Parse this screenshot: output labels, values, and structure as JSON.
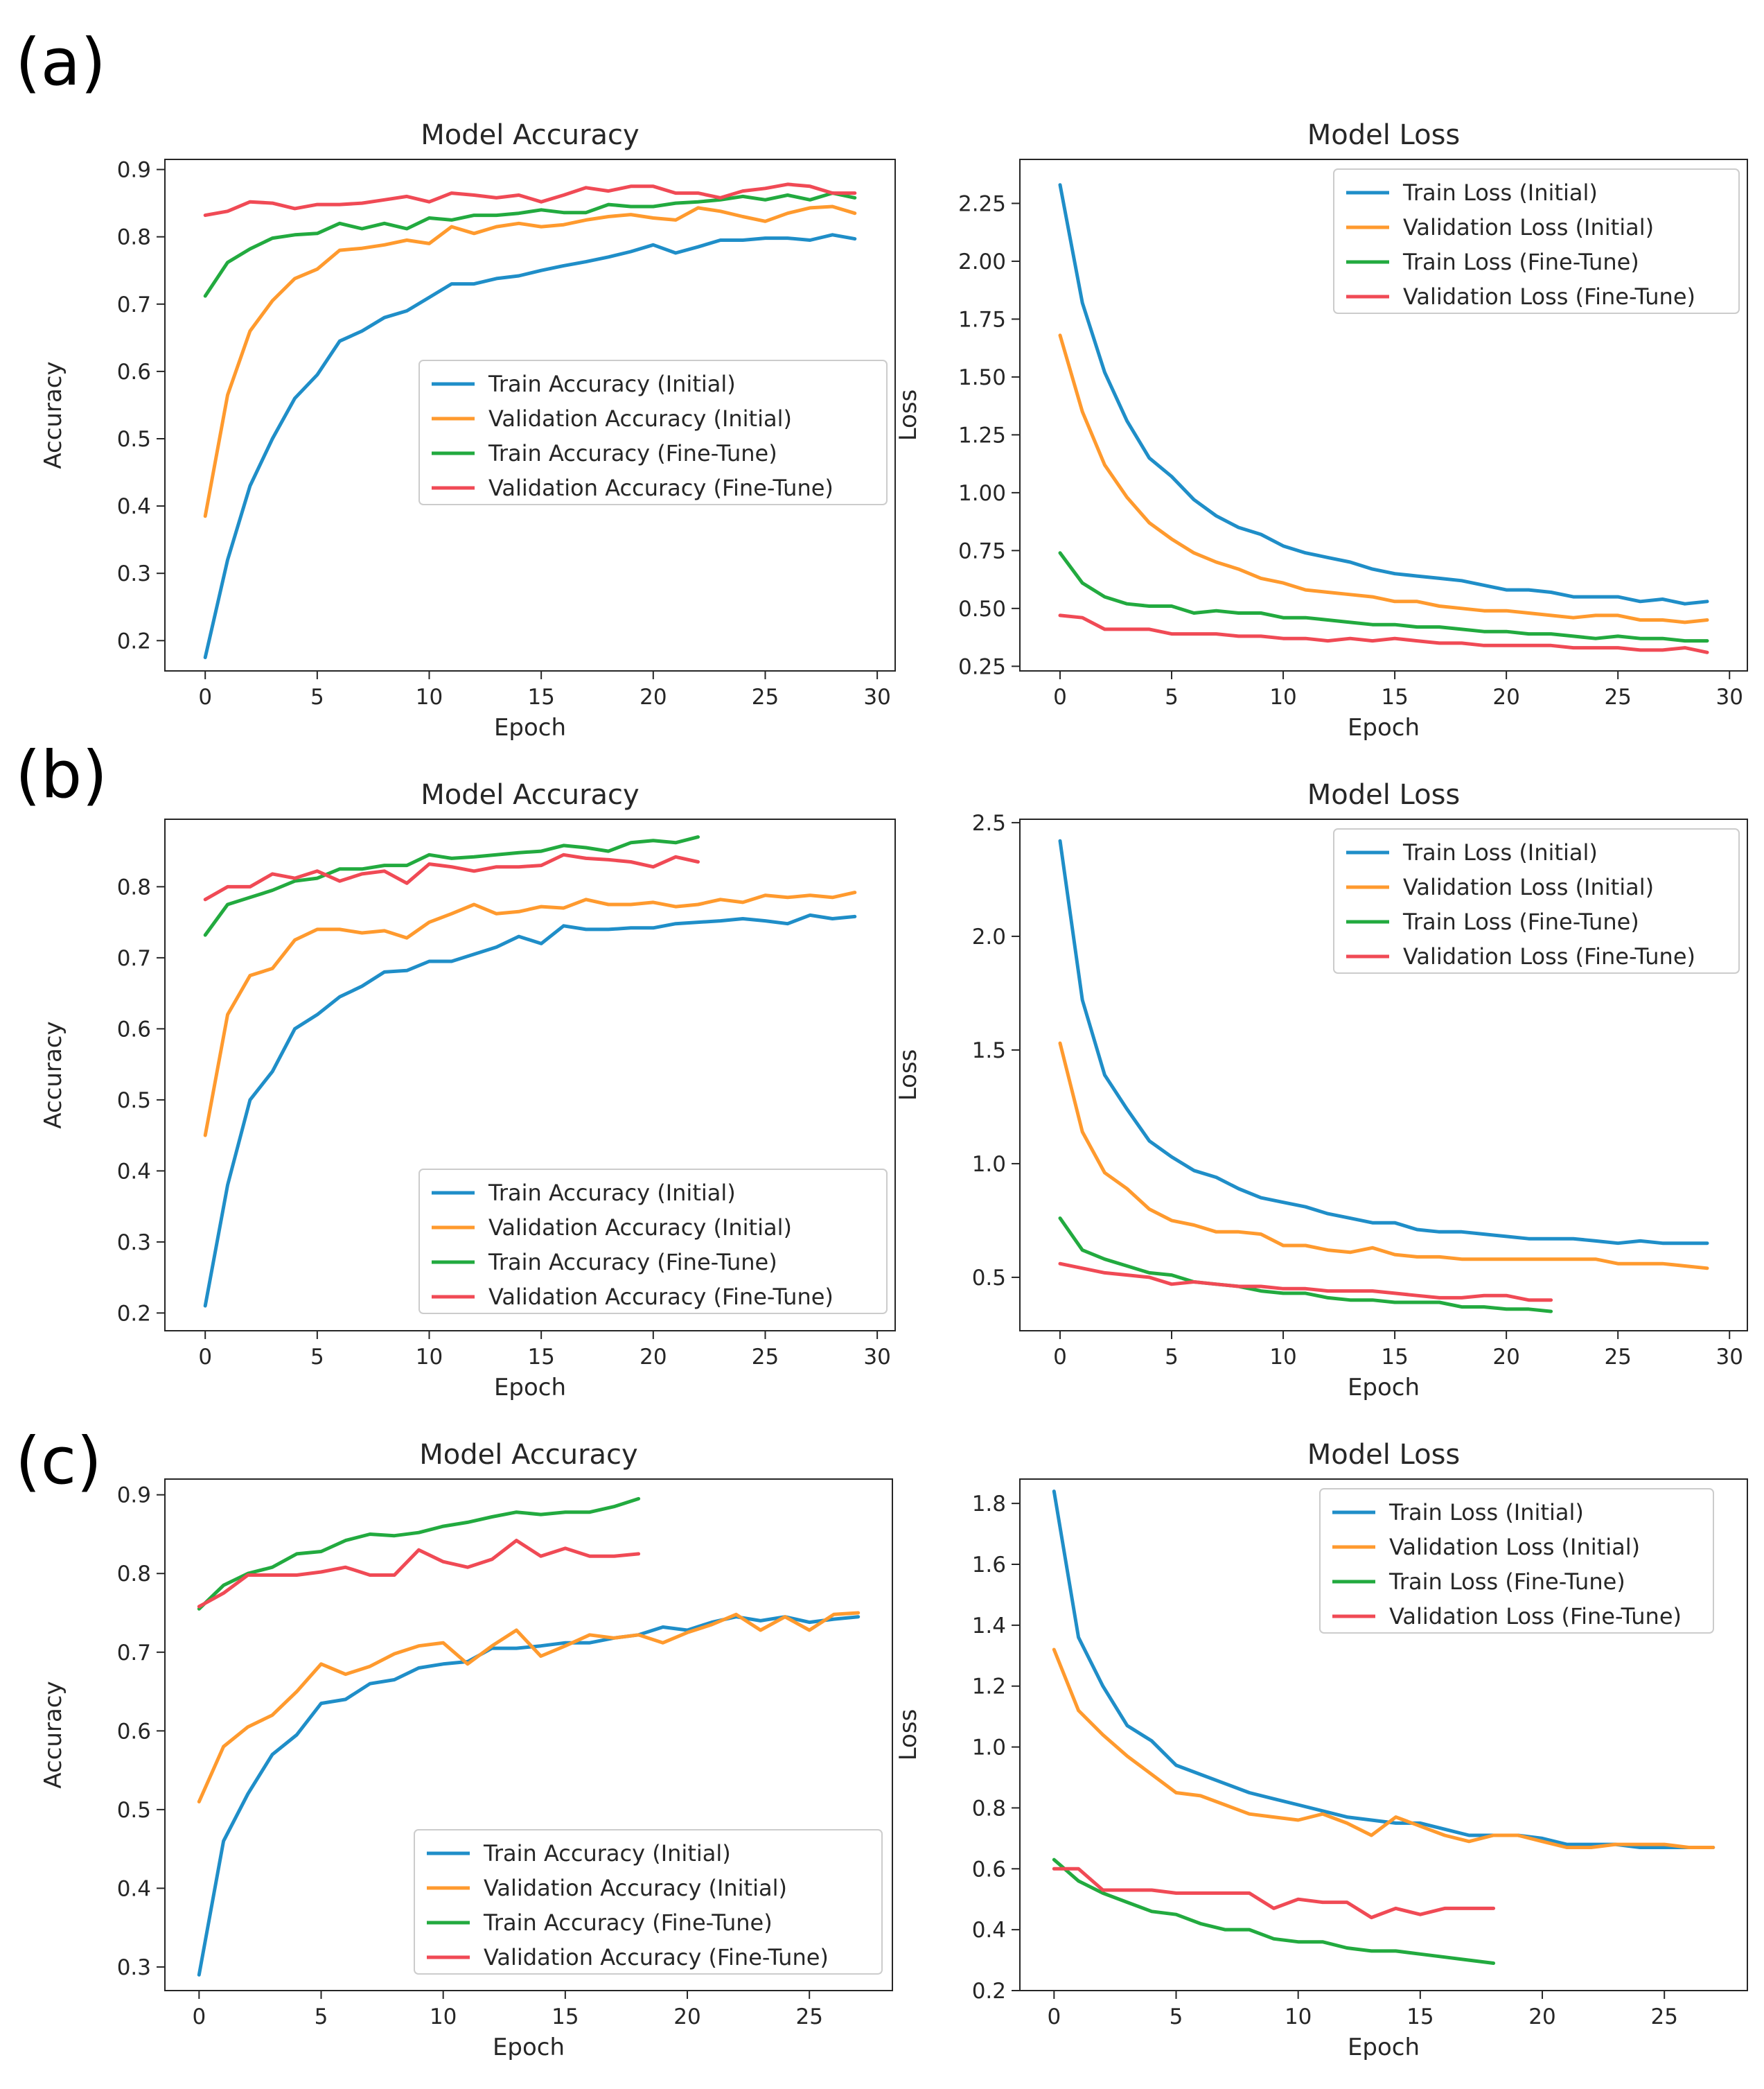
{
  "colors": {
    "train_initial": "#1f8ec8",
    "val_initial": "#ff9a2e",
    "train_finetune": "#22aa3f",
    "val_finetune": "#f04a55"
  },
  "panels": [
    {
      "label": "(a)"
    },
    {
      "label": "(b)"
    },
    {
      "label": "(c)"
    }
  ],
  "chart_data": [
    {
      "type": "line",
      "title": "Model Accuracy",
      "xlabel": "Epoch",
      "ylabel": "Accuracy",
      "xlim": [
        -1.8,
        30.8
      ],
      "ylim": [
        0.155,
        0.915
      ],
      "xticks": [
        0,
        5,
        10,
        15,
        20,
        25,
        30
      ],
      "yticks": [
        0.2,
        0.3,
        0.4,
        0.5,
        0.6,
        0.7,
        0.8,
        0.9
      ],
      "ytick_labels": [
        "0.2",
        "0.3",
        "0.4",
        "0.5",
        "0.6",
        "0.7",
        "0.8",
        "0.9"
      ],
      "legend": "lower-right",
      "series": [
        {
          "name": "Train Accuracy (Initial)",
          "color_key": "train_initial",
          "y": [
            0.175,
            0.32,
            0.43,
            0.5,
            0.56,
            0.595,
            0.645,
            0.66,
            0.68,
            0.69,
            0.71,
            0.73,
            0.73,
            0.738,
            0.742,
            0.75,
            0.757,
            0.763,
            0.77,
            0.778,
            0.788,
            0.776,
            0.785,
            0.795,
            0.795,
            0.798,
            0.798,
            0.795,
            0.803,
            0.797
          ]
        },
        {
          "name": "Validation Accuracy (Initial)",
          "color_key": "val_initial",
          "y": [
            0.385,
            0.565,
            0.66,
            0.705,
            0.738,
            0.752,
            0.78,
            0.783,
            0.788,
            0.795,
            0.79,
            0.815,
            0.805,
            0.815,
            0.82,
            0.815,
            0.818,
            0.825,
            0.83,
            0.833,
            0.828,
            0.825,
            0.843,
            0.838,
            0.83,
            0.823,
            0.835,
            0.843,
            0.845,
            0.835
          ]
        },
        {
          "name": "Train Accuracy (Fine-Tune)",
          "color_key": "train_finetune",
          "y": [
            0.712,
            0.762,
            0.782,
            0.798,
            0.803,
            0.805,
            0.82,
            0.812,
            0.82,
            0.812,
            0.828,
            0.825,
            0.832,
            0.832,
            0.835,
            0.84,
            0.836,
            0.836,
            0.848,
            0.845,
            0.845,
            0.85,
            0.852,
            0.855,
            0.86,
            0.855,
            0.862,
            0.855,
            0.865,
            0.858
          ]
        },
        {
          "name": "Validation Accuracy (Fine-Tune)",
          "color_key": "val_finetune",
          "y": [
            0.832,
            0.838,
            0.852,
            0.85,
            0.842,
            0.848,
            0.848,
            0.85,
            0.855,
            0.86,
            0.852,
            0.865,
            0.862,
            0.858,
            0.862,
            0.852,
            0.862,
            0.873,
            0.868,
            0.875,
            0.875,
            0.865,
            0.865,
            0.858,
            0.868,
            0.872,
            0.878,
            0.875,
            0.865,
            0.865
          ]
        }
      ]
    },
    {
      "type": "line",
      "title": "Model Loss",
      "xlabel": "Epoch",
      "ylabel": "Loss",
      "xlim": [
        -1.8,
        30.8
      ],
      "ylim": [
        0.23,
        2.44
      ],
      "xticks": [
        0,
        5,
        10,
        15,
        20,
        25,
        30
      ],
      "yticks": [
        0.25,
        0.5,
        0.75,
        1.0,
        1.25,
        1.5,
        1.75,
        2.0,
        2.25
      ],
      "ytick_labels": [
        "0.25",
        "0.50",
        "0.75",
        "1.00",
        "1.25",
        "1.50",
        "1.75",
        "2.00",
        "2.25"
      ],
      "legend": "upper-right",
      "series": [
        {
          "name": "Train Loss (Initial)",
          "color_key": "train_initial",
          "y": [
            2.33,
            1.82,
            1.52,
            1.31,
            1.15,
            1.07,
            0.97,
            0.9,
            0.85,
            0.82,
            0.77,
            0.74,
            0.72,
            0.7,
            0.67,
            0.65,
            0.64,
            0.63,
            0.62,
            0.6,
            0.58,
            0.58,
            0.57,
            0.55,
            0.55,
            0.55,
            0.53,
            0.54,
            0.52,
            0.53
          ]
        },
        {
          "name": "Validation Loss (Initial)",
          "color_key": "val_initial",
          "y": [
            1.68,
            1.35,
            1.12,
            0.98,
            0.87,
            0.8,
            0.74,
            0.7,
            0.67,
            0.63,
            0.61,
            0.58,
            0.57,
            0.56,
            0.55,
            0.53,
            0.53,
            0.51,
            0.5,
            0.49,
            0.49,
            0.48,
            0.47,
            0.46,
            0.47,
            0.47,
            0.45,
            0.45,
            0.44,
            0.45
          ]
        },
        {
          "name": "Train Loss (Fine-Tune)",
          "color_key": "train_finetune",
          "y": [
            0.74,
            0.61,
            0.55,
            0.52,
            0.51,
            0.51,
            0.48,
            0.49,
            0.48,
            0.48,
            0.46,
            0.46,
            0.45,
            0.44,
            0.43,
            0.43,
            0.42,
            0.42,
            0.41,
            0.4,
            0.4,
            0.39,
            0.39,
            0.38,
            0.37,
            0.38,
            0.37,
            0.37,
            0.36,
            0.36
          ]
        },
        {
          "name": "Validation Loss (Fine-Tune)",
          "color_key": "val_finetune",
          "y": [
            0.47,
            0.46,
            0.41,
            0.41,
            0.41,
            0.39,
            0.39,
            0.39,
            0.38,
            0.38,
            0.37,
            0.37,
            0.36,
            0.37,
            0.36,
            0.37,
            0.36,
            0.35,
            0.35,
            0.34,
            0.34,
            0.34,
            0.34,
            0.33,
            0.33,
            0.33,
            0.32,
            0.32,
            0.33,
            0.31
          ]
        }
      ]
    },
    {
      "type": "line",
      "title": "Model Accuracy",
      "xlabel": "Epoch",
      "ylabel": "Accuracy",
      "xlim": [
        -1.8,
        30.8
      ],
      "ylim": [
        0.175,
        0.895
      ],
      "xticks": [
        0,
        5,
        10,
        15,
        20,
        25,
        30
      ],
      "yticks": [
        0.2,
        0.3,
        0.4,
        0.5,
        0.6,
        0.7,
        0.8
      ],
      "ytick_labels": [
        "0.2",
        "0.3",
        "0.4",
        "0.5",
        "0.6",
        "0.7",
        "0.8"
      ],
      "legend": "lower-right",
      "series": [
        {
          "name": "Train Accuracy (Initial)",
          "color_key": "train_initial",
          "y": [
            0.21,
            0.38,
            0.5,
            0.54,
            0.6,
            0.62,
            0.645,
            0.66,
            0.68,
            0.682,
            0.695,
            0.695,
            0.705,
            0.715,
            0.73,
            0.72,
            0.745,
            0.74,
            0.74,
            0.742,
            0.742,
            0.748,
            0.75,
            0.752,
            0.755,
            0.752,
            0.748,
            0.76,
            0.755,
            0.758
          ]
        },
        {
          "name": "Validation Accuracy (Initial)",
          "color_key": "val_initial",
          "y": [
            0.45,
            0.62,
            0.675,
            0.685,
            0.725,
            0.74,
            0.74,
            0.735,
            0.738,
            0.728,
            0.75,
            0.762,
            0.775,
            0.762,
            0.765,
            0.772,
            0.77,
            0.782,
            0.775,
            0.775,
            0.778,
            0.772,
            0.775,
            0.782,
            0.778,
            0.788,
            0.785,
            0.788,
            0.785,
            0.792
          ]
        },
        {
          "name": "Train Accuracy (Fine-Tune)",
          "color_key": "train_finetune",
          "y": [
            0.732,
            0.775,
            0.785,
            0.795,
            0.808,
            0.812,
            0.825,
            0.825,
            0.83,
            0.83,
            0.845,
            0.84,
            0.842,
            0.845,
            0.848,
            0.85,
            0.858,
            0.855,
            0.85,
            0.862,
            0.865,
            0.862,
            0.87
          ]
        },
        {
          "name": "Validation Accuracy (Fine-Tune)",
          "color_key": "val_finetune",
          "y": [
            0.782,
            0.8,
            0.8,
            0.818,
            0.812,
            0.822,
            0.808,
            0.818,
            0.822,
            0.805,
            0.832,
            0.828,
            0.822,
            0.828,
            0.828,
            0.83,
            0.845,
            0.84,
            0.838,
            0.835,
            0.828,
            0.842,
            0.835
          ]
        }
      ]
    },
    {
      "type": "line",
      "title": "Model Loss",
      "xlabel": "Epoch",
      "ylabel": "Loss",
      "xlim": [
        -1.8,
        30.8
      ],
      "ylim": [
        0.265,
        2.515
      ],
      "xticks": [
        0,
        5,
        10,
        15,
        20,
        25,
        30
      ],
      "yticks": [
        0.5,
        1.0,
        1.5,
        2.0,
        2.5
      ],
      "ytick_labels": [
        "0.5",
        "1.0",
        "1.5",
        "2.0",
        "2.5"
      ],
      "legend": "upper-right",
      "series": [
        {
          "name": "Train Loss (Initial)",
          "color_key": "train_initial",
          "y": [
            2.42,
            1.72,
            1.39,
            1.24,
            1.1,
            1.03,
            0.97,
            0.94,
            0.89,
            0.85,
            0.83,
            0.81,
            0.78,
            0.76,
            0.74,
            0.74,
            0.71,
            0.7,
            0.7,
            0.69,
            0.68,
            0.67,
            0.67,
            0.67,
            0.66,
            0.65,
            0.66,
            0.65,
            0.65,
            0.65
          ]
        },
        {
          "name": "Validation Loss (Initial)",
          "color_key": "val_initial",
          "y": [
            1.53,
            1.14,
            0.96,
            0.89,
            0.8,
            0.75,
            0.73,
            0.7,
            0.7,
            0.69,
            0.64,
            0.64,
            0.62,
            0.61,
            0.63,
            0.6,
            0.59,
            0.59,
            0.58,
            0.58,
            0.58,
            0.58,
            0.58,
            0.58,
            0.58,
            0.56,
            0.56,
            0.56,
            0.55,
            0.54
          ]
        },
        {
          "name": "Train Loss (Fine-Tune)",
          "color_key": "train_finetune",
          "y": [
            0.76,
            0.62,
            0.58,
            0.55,
            0.52,
            0.51,
            0.48,
            0.47,
            0.46,
            0.44,
            0.43,
            0.43,
            0.41,
            0.4,
            0.4,
            0.39,
            0.39,
            0.39,
            0.37,
            0.37,
            0.36,
            0.36,
            0.35
          ]
        },
        {
          "name": "Validation Loss (Fine-Tune)",
          "color_key": "val_finetune",
          "y": [
            0.56,
            0.54,
            0.52,
            0.51,
            0.5,
            0.47,
            0.48,
            0.47,
            0.46,
            0.46,
            0.45,
            0.45,
            0.44,
            0.44,
            0.44,
            0.43,
            0.42,
            0.41,
            0.41,
            0.42,
            0.42,
            0.4,
            0.4
          ]
        }
      ]
    },
    {
      "type": "line",
      "title": "Model Accuracy",
      "xlabel": "Epoch",
      "ylabel": "Accuracy",
      "xlim": [
        -1.4,
        28.4
      ],
      "ylim": [
        0.27,
        0.92
      ],
      "xticks": [
        0,
        5,
        10,
        15,
        20,
        25
      ],
      "yticks": [
        0.3,
        0.4,
        0.5,
        0.6,
        0.7,
        0.8,
        0.9
      ],
      "ytick_labels": [
        "0.3",
        "0.4",
        "0.5",
        "0.6",
        "0.7",
        "0.8",
        "0.9"
      ],
      "legend": "lower-right",
      "series": [
        {
          "name": "Train Accuracy (Initial)",
          "color_key": "train_initial",
          "y": [
            0.29,
            0.46,
            0.52,
            0.57,
            0.595,
            0.635,
            0.64,
            0.66,
            0.665,
            0.68,
            0.685,
            0.688,
            0.705,
            0.705,
            0.708,
            0.712,
            0.712,
            0.718,
            0.722,
            0.732,
            0.728,
            0.738,
            0.745,
            0.74,
            0.745,
            0.738,
            0.742,
            0.745
          ]
        },
        {
          "name": "Validation Accuracy (Initial)",
          "color_key": "val_initial",
          "y": [
            0.51,
            0.58,
            0.605,
            0.62,
            0.65,
            0.685,
            0.672,
            0.682,
            0.698,
            0.708,
            0.712,
            0.685,
            0.708,
            0.728,
            0.695,
            0.708,
            0.722,
            0.718,
            0.722,
            0.712,
            0.725,
            0.735,
            0.748,
            0.728,
            0.745,
            0.728,
            0.748,
            0.75
          ]
        },
        {
          "name": "Train Accuracy (Fine-Tune)",
          "color_key": "train_finetune",
          "y": [
            0.755,
            0.785,
            0.8,
            0.808,
            0.825,
            0.828,
            0.842,
            0.85,
            0.848,
            0.852,
            0.86,
            0.865,
            0.872,
            0.878,
            0.875,
            0.878,
            0.878,
            0.885,
            0.895
          ]
        },
        {
          "name": "Validation Accuracy (Fine-Tune)",
          "color_key": "val_finetune",
          "y": [
            0.758,
            0.775,
            0.798,
            0.798,
            0.798,
            0.802,
            0.808,
            0.798,
            0.798,
            0.83,
            0.815,
            0.808,
            0.818,
            0.842,
            0.822,
            0.832,
            0.822,
            0.822,
            0.825
          ]
        }
      ]
    },
    {
      "type": "line",
      "title": "Model Loss",
      "xlabel": "Epoch",
      "ylabel": "Loss",
      "xlim": [
        -1.4,
        28.4
      ],
      "ylim": [
        0.2,
        1.88
      ],
      "xticks": [
        0,
        5,
        10,
        15,
        20,
        25
      ],
      "yticks": [
        0.2,
        0.4,
        0.6,
        0.8,
        1.0,
        1.2,
        1.4,
        1.6,
        1.8
      ],
      "ytick_labels": [
        "0.2",
        "0.4",
        "0.6",
        "0.8",
        "1.0",
        "1.2",
        "1.4",
        "1.6",
        "1.8"
      ],
      "legend": "upper-right",
      "series": [
        {
          "name": "Train Loss (Initial)",
          "color_key": "train_initial",
          "y": [
            1.84,
            1.36,
            1.2,
            1.07,
            1.02,
            0.94,
            0.91,
            0.88,
            0.85,
            0.83,
            0.81,
            0.79,
            0.77,
            0.76,
            0.75,
            0.75,
            0.73,
            0.71,
            0.71,
            0.71,
            0.7,
            0.68,
            0.68,
            0.68,
            0.67,
            0.67,
            0.67,
            0.67
          ]
        },
        {
          "name": "Validation Loss (Initial)",
          "color_key": "val_initial",
          "y": [
            1.32,
            1.12,
            1.04,
            0.97,
            0.91,
            0.85,
            0.84,
            0.81,
            0.78,
            0.77,
            0.76,
            0.78,
            0.75,
            0.71,
            0.77,
            0.74,
            0.71,
            0.69,
            0.71,
            0.71,
            0.69,
            0.67,
            0.67,
            0.68,
            0.68,
            0.68,
            0.67,
            0.67
          ]
        },
        {
          "name": "Train Loss (Fine-Tune)",
          "color_key": "train_finetune",
          "y": [
            0.63,
            0.56,
            0.52,
            0.49,
            0.46,
            0.45,
            0.42,
            0.4,
            0.4,
            0.37,
            0.36,
            0.36,
            0.34,
            0.33,
            0.33,
            0.32,
            0.31,
            0.3,
            0.29
          ]
        },
        {
          "name": "Validation Loss (Fine-Tune)",
          "color_key": "val_finetune",
          "y": [
            0.6,
            0.6,
            0.53,
            0.53,
            0.53,
            0.52,
            0.52,
            0.52,
            0.52,
            0.47,
            0.5,
            0.49,
            0.49,
            0.44,
            0.47,
            0.45,
            0.47,
            0.47,
            0.47
          ]
        }
      ]
    }
  ]
}
